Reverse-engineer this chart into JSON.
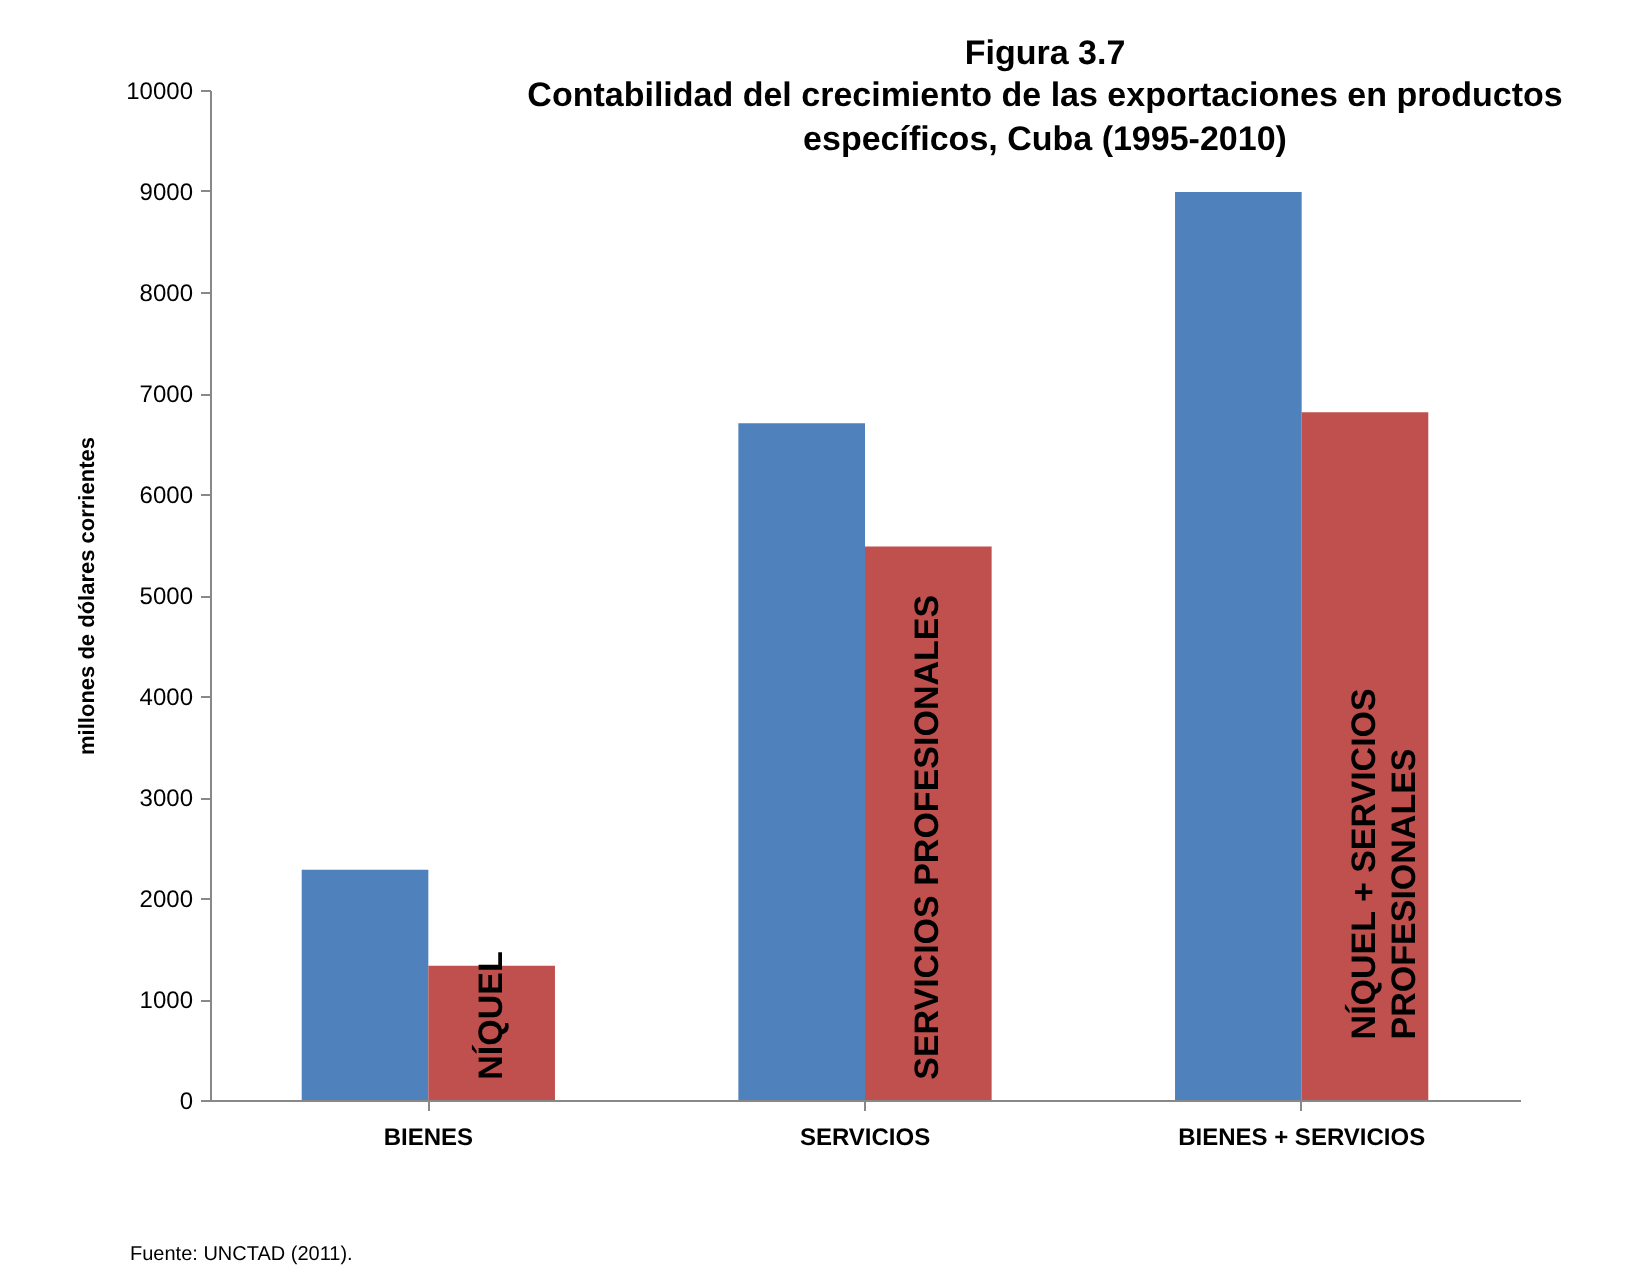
{
  "chart_data": {
    "type": "bar",
    "title": "Figura 3.7",
    "subtitle": "Contabilidad del crecimiento de las exportaciones en productos\nespecíficos, Cuba  (1995-2010)",
    "ylabel": "millones de dólares corrientes",
    "categories": [
      "BIENES",
      "SERVICIOS",
      "BIENES + SERVICIOS"
    ],
    "series": [
      {
        "color": "#4f81bd",
        "values": [
          2280,
          6700,
          8990
        ]
      },
      {
        "color": "#c0504d",
        "values": [
          1330,
          5480,
          6810
        ]
      }
    ],
    "ylim": [
      0,
      10000
    ],
    "yticks": [
      0,
      1000,
      2000,
      3000,
      4000,
      5000,
      6000,
      7000,
      8000,
      9000,
      10000
    ],
    "grid": false,
    "legend": false,
    "annotations": [
      {
        "text": "NÍQUEL",
        "x": "BIENES",
        "y": 200
      },
      {
        "text": "SERVICIOS PROFESIONALES",
        "x": "SERVICIOS",
        "y": 200
      },
      {
        "text": "NÍQUEL + SERVICIOS\nPROFESIONALES",
        "x": "BIENES + SERVICIOS",
        "y": 600
      },
      "Fuente: UNCTAD (2011)."
    ]
  }
}
